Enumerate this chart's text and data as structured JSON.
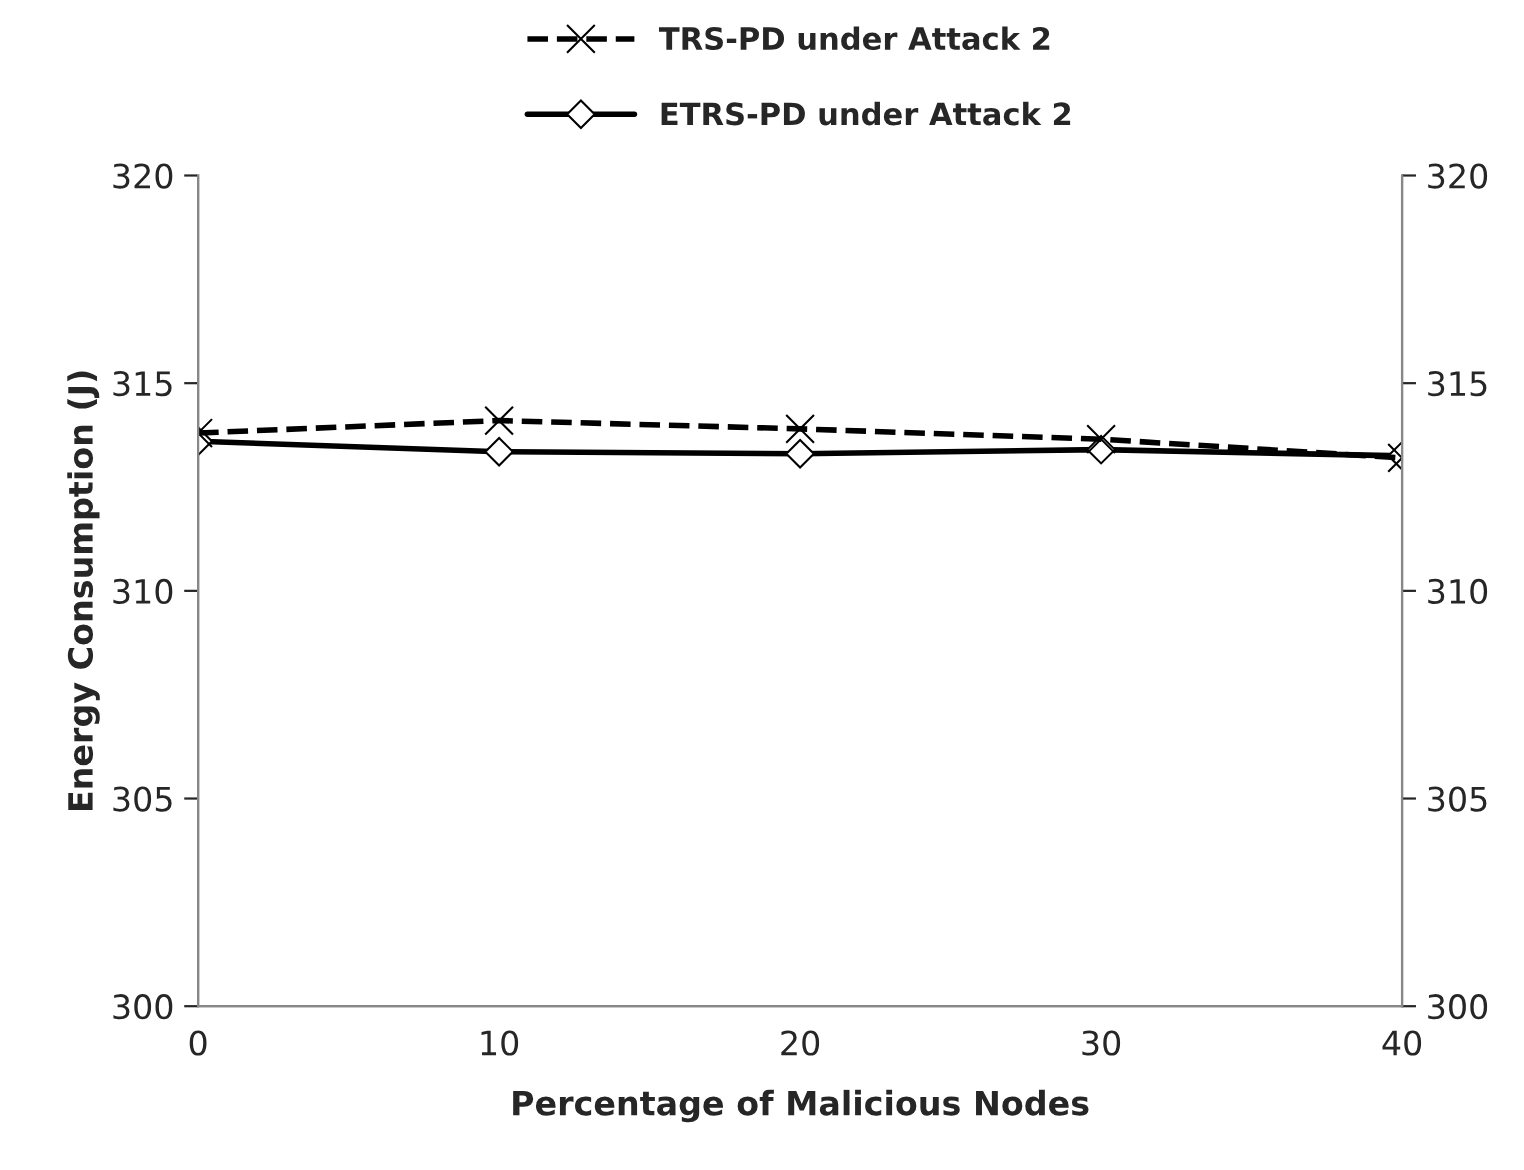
{
  "chart_data": {
    "type": "line",
    "xlabel": "Percentage of Malicious Nodes",
    "ylabel": "Energy Consumption (J)",
    "x": [
      0,
      10,
      20,
      30,
      40
    ],
    "series": [
      {
        "name": "TRS-PD under Attack 2",
        "color": "#000000",
        "values": [
          313.8,
          314.1,
          313.9,
          313.65,
          313.2
        ],
        "marker": "cross",
        "line_style": "dashed"
      },
      {
        "name": "ETRS-PD under Attack 2",
        "color": "#000000",
        "values": [
          313.6,
          313.35,
          313.3,
          313.4,
          313.25
        ],
        "marker": "diamond",
        "line_style": "solid"
      }
    ],
    "xlim": [
      0,
      40
    ],
    "xticks": [
      0,
      10,
      20,
      30,
      40
    ],
    "ylim": [
      300,
      320
    ],
    "yticks": [
      300,
      305,
      310,
      315,
      320
    ],
    "y2lim": [
      300,
      320
    ],
    "y2ticks": [
      300,
      305,
      310,
      315,
      320
    ],
    "grid": false,
    "legend": "top"
  }
}
